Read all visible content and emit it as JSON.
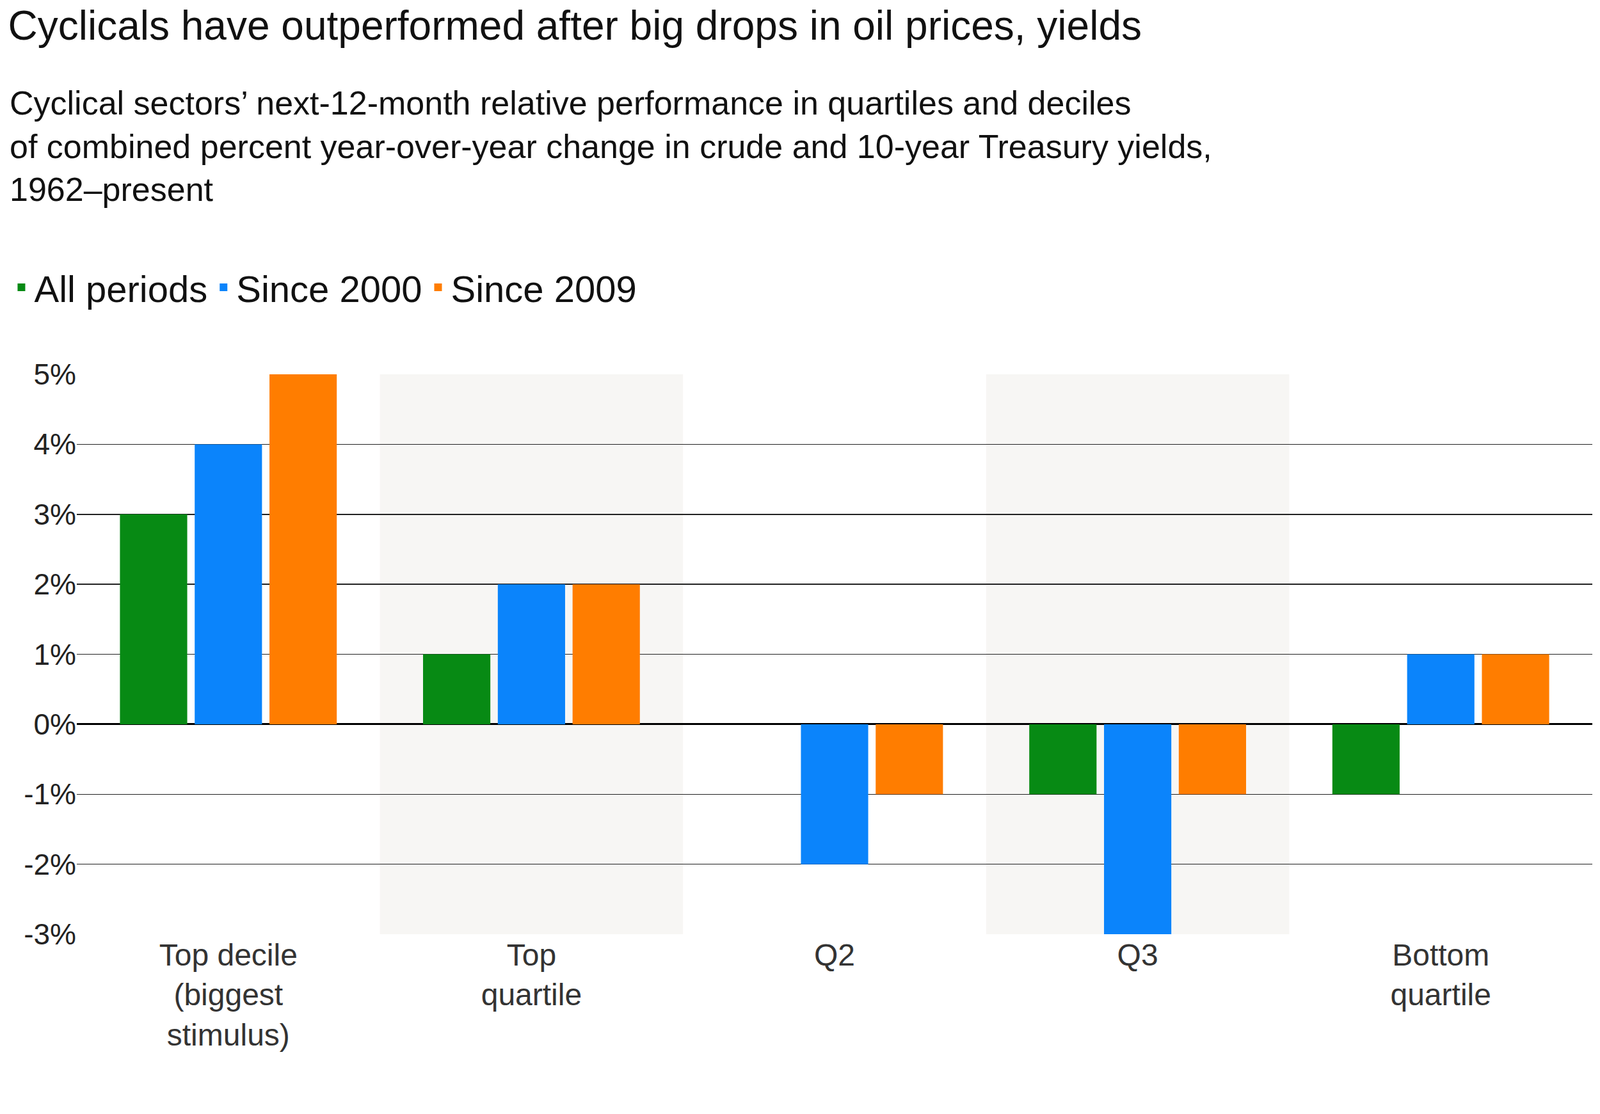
{
  "chart_data": {
    "type": "bar",
    "title": "Cyclicals have outperformed after big drops in oil prices, yields",
    "subtitle": "Cyclical sectors’ next-12-month relative performance in quartiles and deciles of combined percent year-over-year change in crude and 10-year Treasury yields, 1962–present",
    "categories": [
      "Top decile (biggest stimulus)",
      "Top quartile",
      "Q2",
      "Q3",
      "Bottom quartile"
    ],
    "series": [
      {
        "name": "All periods",
        "color": "#078a14",
        "values": [
          3,
          1,
          0,
          -1,
          -1
        ]
      },
      {
        "name": "Since 2000",
        "color": "#0b84fb",
        "values": [
          4,
          2,
          -2,
          -3,
          1
        ]
      },
      {
        "name": "Since 2009",
        "color": "#ff7d00",
        "values": [
          5,
          2,
          -1,
          -1,
          1
        ]
      }
    ],
    "ylim": [
      -3,
      5
    ],
    "yticks": [
      {
        "value": -3,
        "label": "-3%"
      },
      {
        "value": -2,
        "label": "-2%"
      },
      {
        "value": -1,
        "label": "-1%"
      },
      {
        "value": 0,
        "label": "0%"
      },
      {
        "value": 1,
        "label": "1%"
      },
      {
        "value": 2,
        "label": "2%"
      },
      {
        "value": 3,
        "label": "3%"
      },
      {
        "value": 4,
        "label": "4%"
      },
      {
        "value": 5,
        "label": "5%"
      }
    ],
    "grid": true,
    "legend": "top left"
  }
}
